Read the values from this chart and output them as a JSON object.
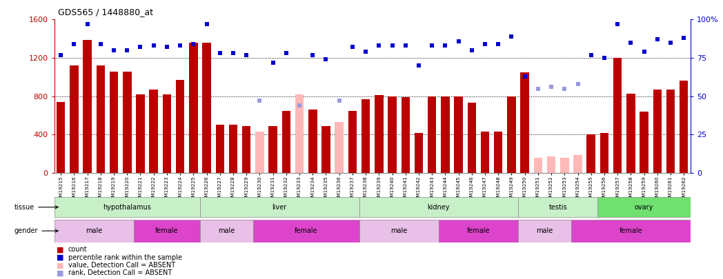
{
  "title": "GDS565 / 1448880_at",
  "samples": [
    "GSM19215",
    "GSM19216",
    "GSM19217",
    "GSM19218",
    "GSM19219",
    "GSM19220",
    "GSM19221",
    "GSM19222",
    "GSM19223",
    "GSM19224",
    "GSM19225",
    "GSM19226",
    "GSM19227",
    "GSM19228",
    "GSM19229",
    "GSM19230",
    "GSM19231",
    "GSM19232",
    "GSM19233",
    "GSM19234",
    "GSM19235",
    "GSM19236",
    "GSM19237",
    "GSM19238",
    "GSM19239",
    "GSM19240",
    "GSM19241",
    "GSM19242",
    "GSM19243",
    "GSM19244",
    "GSM19245",
    "GSM19246",
    "GSM19247",
    "GSM19248",
    "GSM19249",
    "GSM19250",
    "GSM19251",
    "GSM19252",
    "GSM19253",
    "GSM19254",
    "GSM19255",
    "GSM19256",
    "GSM19257",
    "GSM19258",
    "GSM19259",
    "GSM19260",
    "GSM19261",
    "GSM19262"
  ],
  "counts": [
    740,
    1120,
    1390,
    1120,
    1060,
    1060,
    820,
    870,
    820,
    970,
    1360,
    1360,
    500,
    500,
    490,
    430,
    490,
    650,
    820,
    660,
    490,
    530,
    650,
    770,
    810,
    800,
    790,
    420,
    800,
    800,
    800,
    730,
    430,
    430,
    800,
    1050,
    160,
    170,
    160,
    190,
    400,
    420,
    1200,
    830,
    640,
    870,
    870,
    960
  ],
  "absent": [
    false,
    false,
    false,
    false,
    false,
    false,
    false,
    false,
    false,
    false,
    false,
    false,
    false,
    false,
    false,
    true,
    false,
    false,
    true,
    false,
    false,
    true,
    false,
    false,
    false,
    false,
    false,
    false,
    false,
    false,
    false,
    false,
    false,
    false,
    false,
    false,
    true,
    true,
    true,
    true,
    false,
    false,
    false,
    false,
    false,
    false,
    false,
    false
  ],
  "percentile_ranks": [
    77,
    84,
    97,
    84,
    80,
    80,
    82,
    83,
    82,
    83,
    84,
    97,
    78,
    78,
    77,
    75,
    72,
    78,
    78,
    77,
    74,
    78,
    82,
    79,
    83,
    83,
    83,
    70,
    83,
    83,
    86,
    80,
    84,
    84,
    89,
    63,
    null,
    null,
    null,
    null,
    77,
    75,
    97,
    85,
    79,
    87,
    85,
    88
  ],
  "absent_ranks": [
    null,
    null,
    null,
    null,
    null,
    null,
    null,
    null,
    null,
    null,
    null,
    null,
    null,
    null,
    null,
    47,
    null,
    null,
    44,
    null,
    null,
    47,
    null,
    null,
    null,
    null,
    null,
    null,
    null,
    null,
    null,
    null,
    null,
    null,
    null,
    null,
    55,
    56,
    55,
    58,
    null,
    null,
    null,
    null,
    null,
    null,
    null,
    null
  ],
  "tissue_groups": [
    {
      "label": "hypothalamus",
      "start": 0,
      "end": 11
    },
    {
      "label": "liver",
      "start": 11,
      "end": 23
    },
    {
      "label": "kidney",
      "start": 23,
      "end": 35
    },
    {
      "label": "testis",
      "start": 35,
      "end": 41
    },
    {
      "label": "ovary",
      "start": 41,
      "end": 48
    }
  ],
  "gender_groups": [
    {
      "label": "male",
      "start": 0,
      "end": 6
    },
    {
      "label": "female",
      "start": 6,
      "end": 11
    },
    {
      "label": "male",
      "start": 11,
      "end": 15
    },
    {
      "label": "female",
      "start": 15,
      "end": 23
    },
    {
      "label": "male",
      "start": 23,
      "end": 29
    },
    {
      "label": "female",
      "start": 29,
      "end": 35
    },
    {
      "label": "male",
      "start": 35,
      "end": 39
    },
    {
      "label": "female",
      "start": 39,
      "end": 48
    }
  ],
  "ylim_left": [
    0,
    1600
  ],
  "ylim_right": [
    0,
    100
  ],
  "yticks_left": [
    0,
    400,
    800,
    1200,
    1600
  ],
  "yticks_right": [
    0,
    25,
    50,
    75,
    100
  ],
  "bar_color_present": "#bb0000",
  "bar_color_absent": "#ffb8b8",
  "dot_color_present": "#0000cc",
  "dot_color_absent": "#9999dd",
  "background_color": "#ffffff",
  "tissue_color_light": "#c8f0c8",
  "tissue_color_dark": "#70e070",
  "gender_color_male": "#e8c0e8",
  "gender_color_female": "#dd44cc"
}
